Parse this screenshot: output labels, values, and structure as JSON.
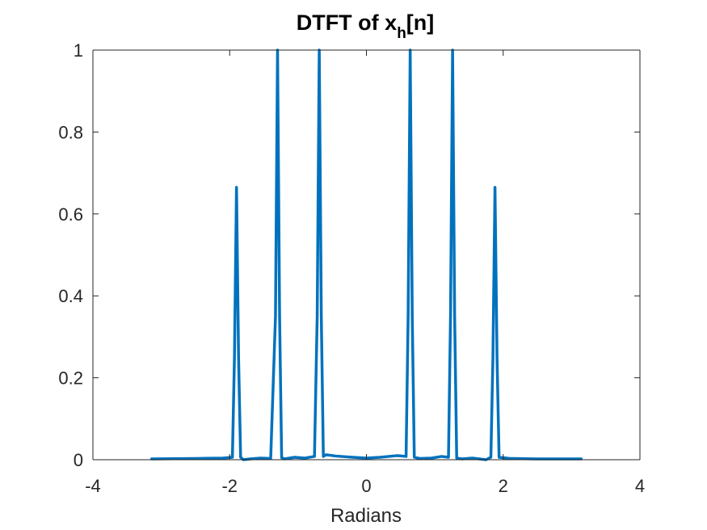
{
  "chart_data": {
    "type": "line",
    "title": {
      "text": "DTFT of x",
      "subscript": "h",
      "suffix": "[n]"
    },
    "xlabel": "Radians",
    "ylabel": "",
    "xlim": [
      -4,
      4
    ],
    "ylim": [
      0,
      1
    ],
    "xticks": [
      -4,
      -2,
      0,
      2,
      4
    ],
    "xtick_labels": [
      "-4",
      "-2",
      "0",
      "2",
      "4"
    ],
    "yticks": [
      0,
      0.2,
      0.4,
      0.6,
      0.8,
      1
    ],
    "ytick_labels": [
      "0",
      "0.2",
      "0.4",
      "0.6",
      "0.8",
      "1"
    ],
    "grid": false,
    "box": true,
    "series": [
      {
        "color": "#0072BD",
        "x": [
          -3.1416,
          -2.5,
          -2.1,
          -1.96,
          -1.93,
          -1.9,
          -1.87,
          -1.84,
          -1.8,
          -1.7,
          -1.55,
          -1.4,
          -1.33,
          -1.3,
          -1.27,
          -1.24,
          -1.2,
          -1.05,
          -0.9,
          -0.76,
          -0.72,
          -0.69,
          -0.66,
          -0.63,
          -0.59,
          -0.45,
          -0.2,
          0.0,
          0.2,
          0.45,
          0.58,
          0.61,
          0.64,
          0.67,
          0.7,
          0.78,
          0.95,
          1.1,
          1.2,
          1.23,
          1.26,
          1.29,
          1.32,
          1.4,
          1.55,
          1.75,
          1.82,
          1.85,
          1.88,
          1.91,
          1.94,
          2.1,
          2.5,
          3.1416
        ],
        "y": [
          0.002,
          0.003,
          0.004,
          0.006,
          0.25,
          0.665,
          0.25,
          0.006,
          0.0,
          0.002,
          0.004,
          0.003,
          0.35,
          1.0,
          0.35,
          0.005,
          0.002,
          0.006,
          0.004,
          0.008,
          0.35,
          1.0,
          0.35,
          0.008,
          0.012,
          0.009,
          0.006,
          0.004,
          0.006,
          0.01,
          0.008,
          0.35,
          1.0,
          0.35,
          0.006,
          0.003,
          0.004,
          0.008,
          0.006,
          0.35,
          1.0,
          0.35,
          0.004,
          0.002,
          0.004,
          0.0,
          0.006,
          0.25,
          0.665,
          0.25,
          0.006,
          0.003,
          0.002,
          0.002
        ]
      }
    ]
  }
}
